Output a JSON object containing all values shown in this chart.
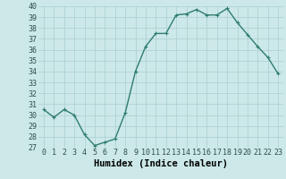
{
  "x": [
    0,
    1,
    2,
    3,
    4,
    5,
    6,
    7,
    8,
    9,
    10,
    11,
    12,
    13,
    14,
    15,
    16,
    17,
    18,
    19,
    20,
    21,
    22,
    23
  ],
  "y": [
    30.5,
    29.8,
    30.5,
    30.0,
    28.2,
    27.2,
    27.5,
    27.8,
    30.2,
    34.0,
    36.3,
    37.5,
    37.5,
    39.2,
    39.3,
    39.7,
    39.2,
    39.2,
    39.8,
    38.5,
    37.4,
    36.3,
    35.3,
    33.8
  ],
  "xlabel": "Humidex (Indice chaleur)",
  "ylim": [
    27,
    40
  ],
  "xlim": [
    -0.5,
    23.5
  ],
  "yticks": [
    27,
    28,
    29,
    30,
    31,
    32,
    33,
    34,
    35,
    36,
    37,
    38,
    39,
    40
  ],
  "xticks": [
    0,
    1,
    2,
    3,
    4,
    5,
    6,
    7,
    8,
    9,
    10,
    11,
    12,
    13,
    14,
    15,
    16,
    17,
    18,
    19,
    20,
    21,
    22,
    23
  ],
  "line_color": "#2e7d6e",
  "marker_color": "#2e7d6e",
  "bg_color": "#cce8e8",
  "grid_color": "#aacfcf",
  "tick_label_color": "#2e4e4e",
  "xlabel_color": "#000000",
  "xlabel_fontsize": 7.5,
  "tick_fontsize": 6.0,
  "line_width": 1.0,
  "marker_size": 2.5
}
